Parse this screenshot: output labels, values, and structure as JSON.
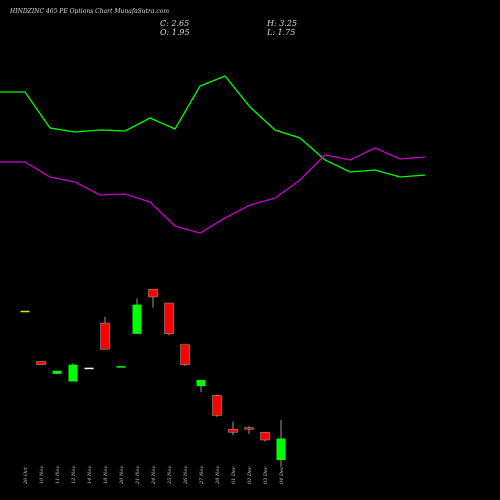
{
  "chart_data": {
    "type": "candlestick",
    "title": "HINDZINC 465 PE Options Chart MunafaSutra.com",
    "ohlc_readout": {
      "close": "C: 2.65",
      "open": "O: 1.95",
      "high": "H: 3.25",
      "low": "L: 1.75"
    },
    "categories": [
      "20 Oct",
      "10 Nov",
      "11 Nov",
      "12 Nov",
      "14 Nov",
      "18 Nov",
      "20 Nov",
      "21 Nov",
      "24 Nov",
      "25 Nov",
      "26 Nov",
      "27 Nov",
      "28 Nov",
      "01 Dec",
      "02 Dec",
      "03 Dec",
      "04 Dec"
    ],
    "candles": [
      {
        "open": 6.8,
        "high": 6.8,
        "low": 6.8,
        "close": 6.8,
        "color": "#e8e000"
      },
      {
        "open": 5.15,
        "high": 5.15,
        "low": 5.05,
        "close": 5.05,
        "color": "#ff0000"
      },
      {
        "open": 4.75,
        "high": 4.85,
        "low": 4.75,
        "close": 4.85,
        "color": "#00ff00"
      },
      {
        "open": 4.5,
        "high": 5.1,
        "low": 4.5,
        "close": 5.05,
        "color": "#00ff00"
      },
      {
        "open": 4.95,
        "high": 4.95,
        "low": 4.95,
        "close": 4.95,
        "color": "#ffffff"
      },
      {
        "open": 6.4,
        "high": 6.6,
        "low": 5.55,
        "close": 5.55,
        "color": "#ff0000"
      },
      {
        "open": 5.0,
        "high": 5.0,
        "low": 5.0,
        "close": 5.0,
        "color": "#00ff00"
      },
      {
        "open": 6.05,
        "high": 7.2,
        "low": 6.05,
        "close": 7.0,
        "color": "#00ff00"
      },
      {
        "open": 7.5,
        "high": 7.5,
        "low": 6.9,
        "close": 7.25,
        "color": "#ff0000"
      },
      {
        "open": 7.05,
        "high": 7.05,
        "low": 6.0,
        "close": 6.05,
        "color": "#ff0000"
      },
      {
        "open": 5.7,
        "high": 5.7,
        "low": 5.0,
        "close": 5.05,
        "color": "#ff0000"
      },
      {
        "open": 4.35,
        "high": 4.55,
        "low": 4.15,
        "close": 4.55,
        "color": "#00ff00"
      },
      {
        "open": 4.05,
        "high": 4.05,
        "low": 3.35,
        "close": 3.4,
        "color": "#ff0000"
      },
      {
        "open": 2.95,
        "high": 3.2,
        "low": 2.75,
        "close": 2.85,
        "color": "#ff0000"
      },
      {
        "open": 3.0,
        "high": 3.05,
        "low": 2.8,
        "close": 2.95,
        "color": "#ff0000"
      },
      {
        "open": 2.85,
        "high": 2.85,
        "low": 2.55,
        "close": 2.6,
        "color": "#ff0000"
      },
      {
        "open": 1.95,
        "high": 3.25,
        "low": 1.75,
        "close": 2.65,
        "color": "#00ff00"
      }
    ],
    "indicator_lines": [
      {
        "color": "#00ff00",
        "values": [
          92,
          92,
          128,
          132,
          130,
          131,
          118,
          129,
          86,
          76,
          107,
          130,
          138,
          160,
          172,
          170,
          177,
          175
        ]
      },
      {
        "color": "#cc00cc",
        "values": [
          162,
          162,
          177,
          182,
          195,
          194,
          202,
          226,
          233,
          218,
          205,
          198,
          180,
          155,
          160,
          148,
          159,
          157
        ]
      }
    ],
    "grid": false,
    "legend": "none"
  }
}
